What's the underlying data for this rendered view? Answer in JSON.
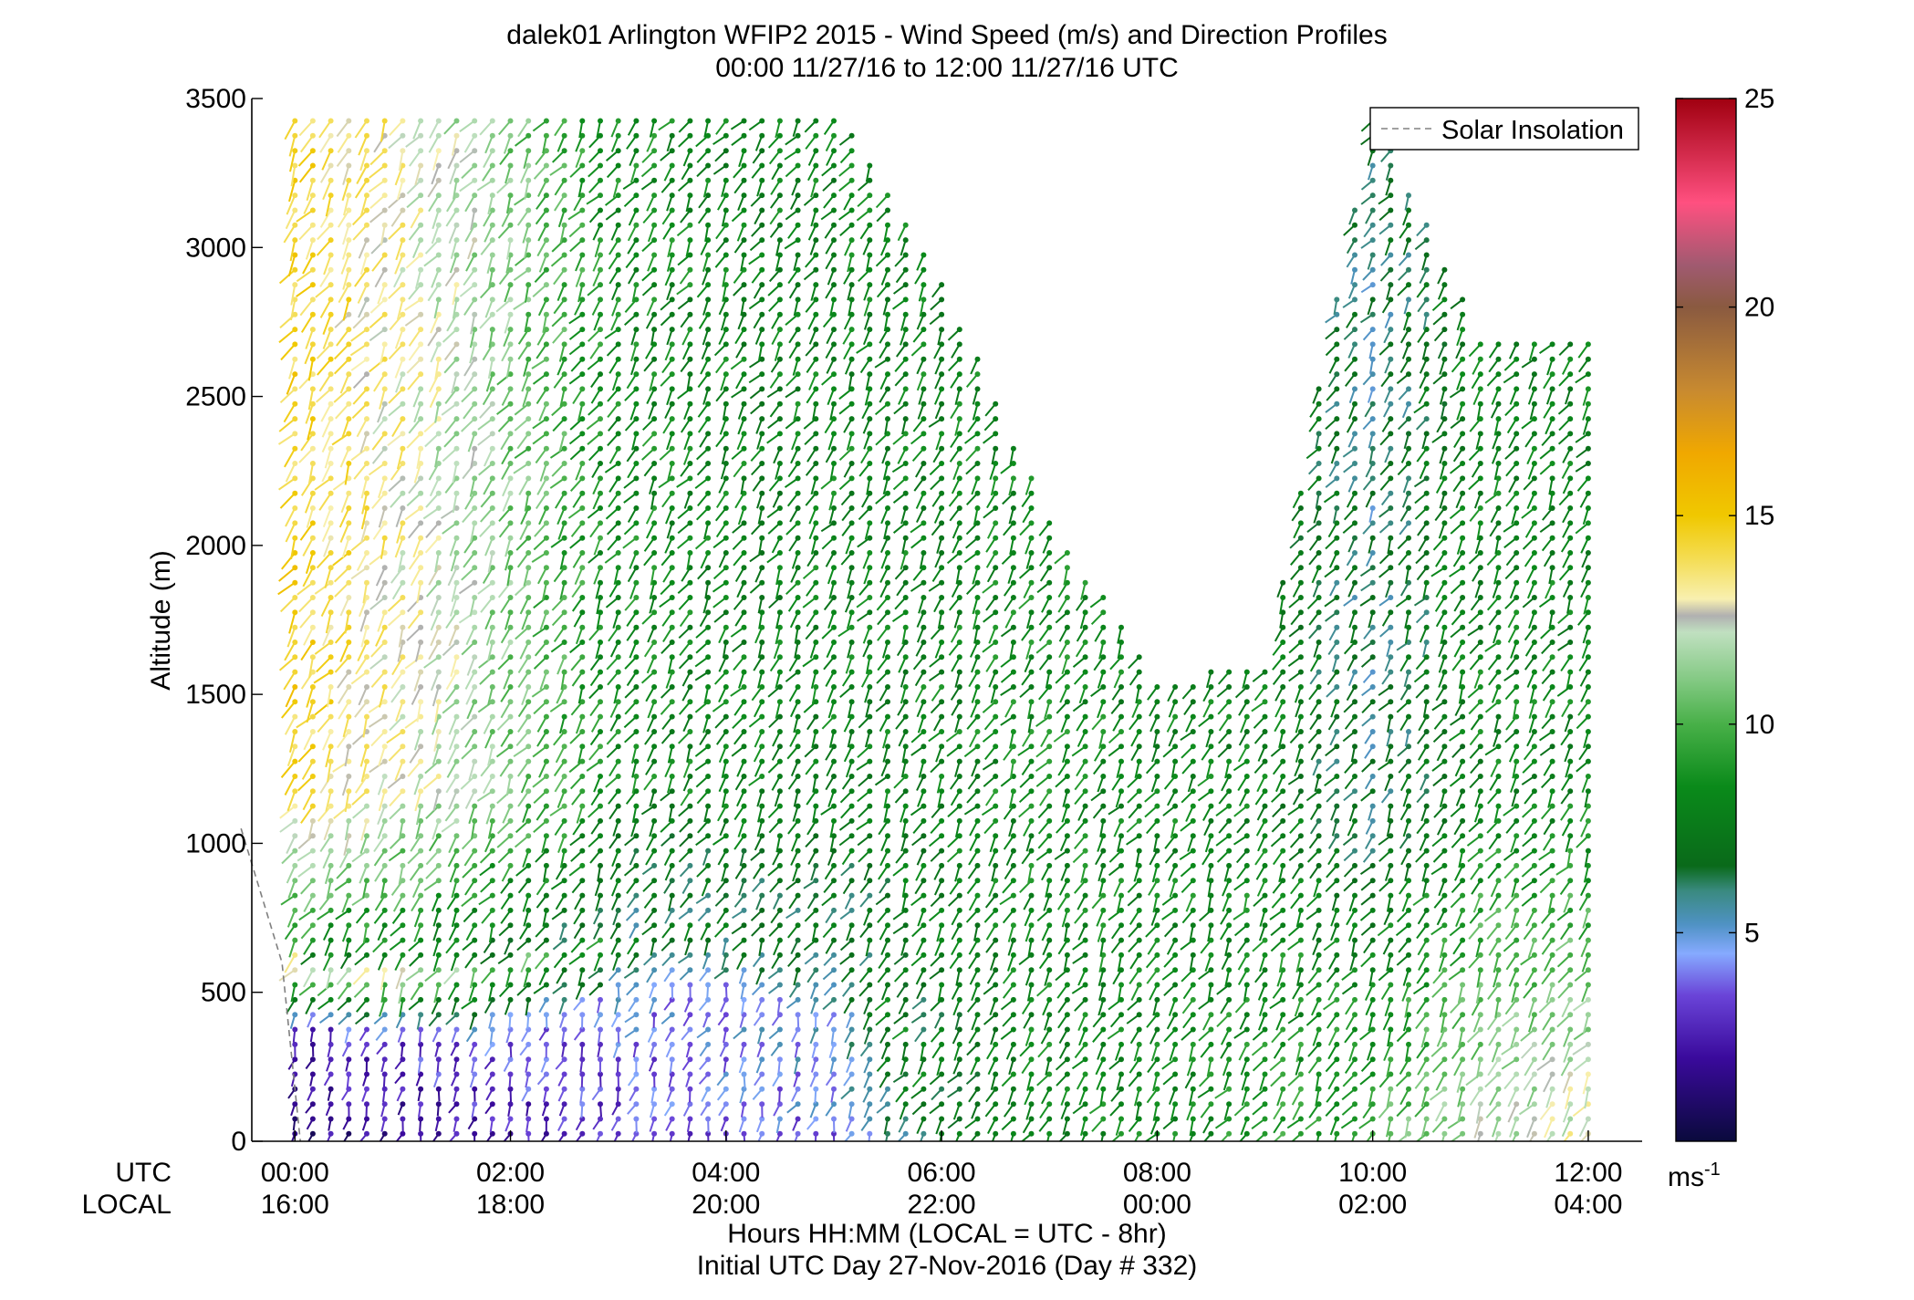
{
  "chart_data": {
    "type": "wind_barb_profile",
    "title": "dalek01 Arlington WFIP2 2015 - Wind Speed (m/s) and Direction Profiles",
    "subtitle": "00:00 11/27/16 to 12:00 11/27/16  UTC",
    "ylabel": "Altitude (m)",
    "ylim": [
      0,
      3500
    ],
    "yticks": [
      "0",
      "500",
      "1000",
      "1500",
      "2000",
      "2500",
      "3000",
      "3500"
    ],
    "x_range_utc_hours": [
      -0.4,
      12.5
    ],
    "xtick_hours": [
      0,
      2,
      4,
      6,
      8,
      10,
      12
    ],
    "utc_row_label": "UTC",
    "local_row_label": "LOCAL",
    "utc_ticks": [
      "00:00",
      "02:00",
      "04:00",
      "06:00",
      "08:00",
      "10:00",
      "12:00"
    ],
    "local_ticks": [
      "16:00",
      "18:00",
      "20:00",
      "22:00",
      "00:00",
      "02:00",
      "04:00"
    ],
    "xlabel": "Hours HH:MM  (LOCAL = UTC - 8hr)",
    "xlabel2": "Initial UTC Day 27-Nov-2016 (Day # 332)",
    "legend": {
      "entries": [
        "Solar Insolation"
      ],
      "position": "top-right",
      "line_style": "dashed",
      "line_color": "#808080"
    },
    "solar_insolation": {
      "x_hours": [
        -0.5,
        -0.12,
        0.05
      ],
      "altitude_m": [
        1050,
        600,
        0
      ]
    },
    "colorbar": {
      "range": [
        0,
        25
      ],
      "ticks": [
        "5",
        "10",
        "15",
        "20",
        "25"
      ],
      "units_label": "ms",
      "units_exponent": "-1",
      "stops": [
        {
          "v": 0,
          "c": "#0a0a3c"
        },
        {
          "v": 2,
          "c": "#3a0a9c"
        },
        {
          "v": 3.5,
          "c": "#6a44d8"
        },
        {
          "v": 4.5,
          "c": "#86aaff"
        },
        {
          "v": 5.2,
          "c": "#4f92c4"
        },
        {
          "v": 6,
          "c": "#3a8a80"
        },
        {
          "v": 6.6,
          "c": "#0a6a1a"
        },
        {
          "v": 8.5,
          "c": "#0a8a1a"
        },
        {
          "v": 10,
          "c": "#48b048"
        },
        {
          "v": 11,
          "c": "#80c880"
        },
        {
          "v": 12.2,
          "c": "#c0e0c0"
        },
        {
          "v": 12.6,
          "c": "#b0b0b0"
        },
        {
          "v": 13,
          "c": "#f8f0b0"
        },
        {
          "v": 14,
          "c": "#f4dc50"
        },
        {
          "v": 15,
          "c": "#f0c800"
        },
        {
          "v": 16.5,
          "c": "#f0a800"
        },
        {
          "v": 18,
          "c": "#c88a30"
        },
        {
          "v": 20,
          "c": "#8a5a40"
        },
        {
          "v": 21,
          "c": "#a05a70"
        },
        {
          "v": 22.5,
          "c": "#ff5080"
        },
        {
          "v": 25,
          "c": "#a00010"
        }
      ]
    },
    "data_description": "Wind profiles every ~10 min, 00:00-12:00 UTC; altitude samples ~50 m. Speeds: 12-16 m/s aloft 00:00-01:30, 7-11 m/s aloft thereafter, 1-4 m/s below 400 m 00:00-06:00, 6-10 m/s low level after 06:30, weak 1-5 m/s layers 300-900 m after 09:30.",
    "profiles": [
      {
        "time_utc": "00:00",
        "top_m": 3470,
        "speed_aloft_ms": 14.5,
        "speed_low_ms": 1.5,
        "low_layer_top_m": 380
      },
      {
        "time_utc": "01:00",
        "top_m": 3470,
        "speed_aloft_ms": 13,
        "speed_low_ms": 2,
        "low_layer_top_m": 340
      },
      {
        "time_utc": "02:00",
        "top_m": 3450,
        "speed_aloft_ms": 11,
        "speed_low_ms": 2.5,
        "low_layer_top_m": 360
      },
      {
        "time_utc": "03:00",
        "top_m": 3470,
        "speed_aloft_ms": 8.5,
        "speed_low_ms": 3,
        "low_layer_top_m": 460
      },
      {
        "time_utc": "04:00",
        "top_m": 3470,
        "speed_aloft_ms": 8,
        "speed_low_ms": 3.5,
        "low_layer_top_m": 520
      },
      {
        "time_utc": "05:00",
        "top_m": 3470,
        "speed_aloft_ms": 8,
        "speed_low_ms": 4,
        "low_layer_top_m": 500
      },
      {
        "time_utc": "06:00",
        "top_m": 2900,
        "speed_aloft_ms": 8,
        "speed_low_ms": 7,
        "low_layer_top_m": 0
      },
      {
        "time_utc": "07:00",
        "top_m": 2100,
        "speed_aloft_ms": 8.5,
        "speed_low_ms": 8,
        "low_layer_top_m": 0
      },
      {
        "time_utc": "08:00",
        "top_m": 1560,
        "speed_aloft_ms": 8,
        "speed_low_ms": 8.5,
        "low_layer_top_m": 0
      },
      {
        "time_utc": "09:00",
        "top_m": 1600,
        "speed_aloft_ms": 8,
        "speed_low_ms": 9,
        "low_layer_top_m": 0
      },
      {
        "time_utc": "10:00",
        "top_m": 3470,
        "speed_aloft_ms": 6,
        "speed_low_ms": 10,
        "low_layer_top_m": 0
      },
      {
        "time_utc": "11:00",
        "top_m": 2700,
        "speed_aloft_ms": 8,
        "speed_low_ms": 12,
        "low_layer_top_m": 0
      },
      {
        "time_utc": "12:00",
        "top_m": 2690,
        "speed_aloft_ms": 8,
        "speed_low_ms": 13,
        "low_layer_top_m": 0
      }
    ]
  }
}
